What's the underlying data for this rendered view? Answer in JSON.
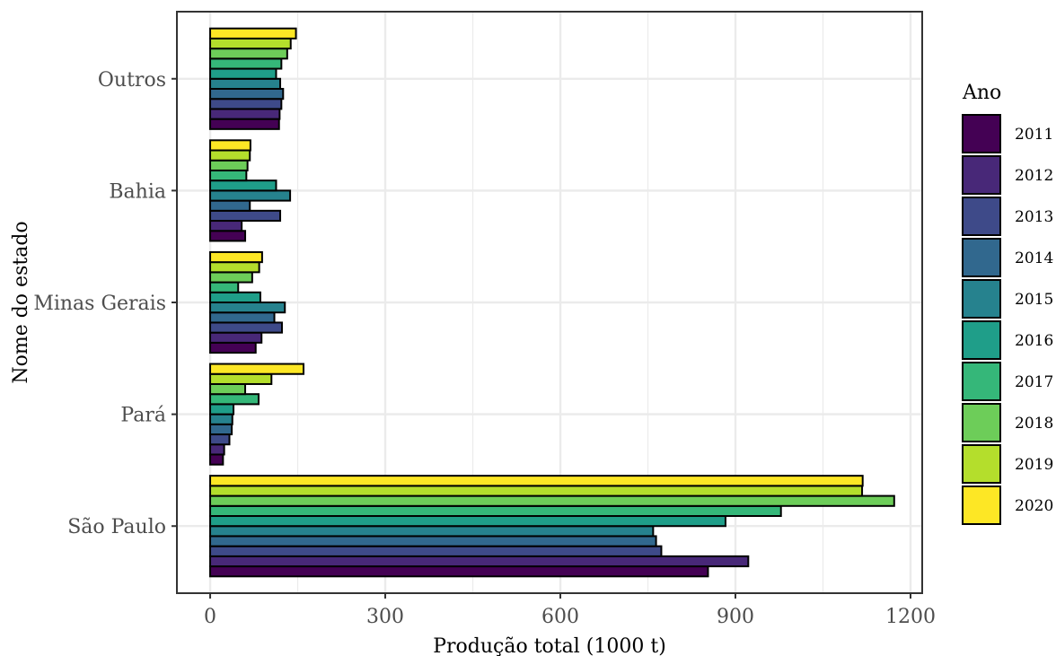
{
  "chart_data": {
    "type": "bar",
    "orientation": "horizontal",
    "xlabel": "Produção total (1000 t)",
    "ylabel": "Nome do estado",
    "xlim": [
      -57,
      1220
    ],
    "x_ticks": [
      0,
      300,
      600,
      900,
      1200
    ],
    "x_tick_labels": [
      "0",
      "300",
      "600",
      "900",
      "1200"
    ],
    "grid": true,
    "legend_title": "Ano",
    "legend_position": "right",
    "categories": [
      "São Paulo",
      "Pará",
      "Minas Gerais",
      "Bahia",
      "Outros"
    ],
    "series": [
      {
        "name": "2011",
        "color": "#440154",
        "values": [
          853,
          22,
          78,
          60,
          118
        ]
      },
      {
        "name": "2012",
        "color": "#482878",
        "values": [
          922,
          24,
          88,
          54,
          119
        ]
      },
      {
        "name": "2013",
        "color": "#3E4A89",
        "values": [
          773,
          33,
          123,
          120,
          122
        ]
      },
      {
        "name": "2014",
        "color": "#31688E",
        "values": [
          764,
          37,
          110,
          68,
          125
        ]
      },
      {
        "name": "2015",
        "color": "#26828E",
        "values": [
          759,
          38,
          128,
          137,
          120
        ]
      },
      {
        "name": "2016",
        "color": "#1F9E89",
        "values": [
          883,
          40,
          86,
          113,
          113
        ]
      },
      {
        "name": "2017",
        "color": "#35B779",
        "values": [
          978,
          83,
          48,
          62,
          122
        ]
      },
      {
        "name": "2018",
        "color": "#6DCD59",
        "values": [
          1172,
          60,
          72,
          64,
          132
        ]
      },
      {
        "name": "2019",
        "color": "#B4DE2C",
        "values": [
          1117,
          105,
          84,
          68,
          138
        ]
      },
      {
        "name": "2020",
        "color": "#FDE725",
        "values": [
          1118,
          160,
          89,
          69,
          147
        ]
      }
    ]
  }
}
